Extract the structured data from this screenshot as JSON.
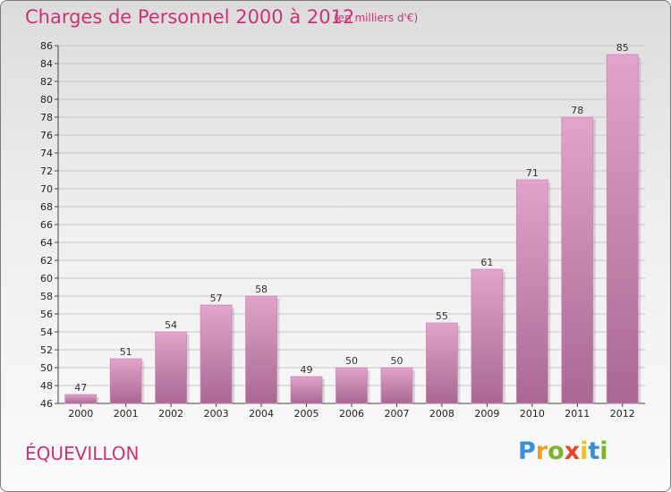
{
  "header": {
    "title": "Charges de Personnel 2000 à 2012",
    "subtitle": "(en milliers d'€)"
  },
  "footer": {
    "commune": "ÉQUEVILLON",
    "logo": [
      "P",
      "r",
      "o",
      "x",
      "i",
      "t",
      "i"
    ],
    "logo_colors": [
      "#3b8ed8",
      "#f0a020",
      "#7ab52c",
      "#e8462c",
      "#f0c020",
      "#3b8ed8",
      "#7ab52c"
    ]
  },
  "colors": {
    "bar_top": "#e2a4ca",
    "bar_bottom": "#a86892",
    "text_accent": "#cc3377"
  },
  "chart_data": {
    "type": "bar",
    "categories": [
      "2000",
      "2001",
      "2002",
      "2003",
      "2004",
      "2005",
      "2006",
      "2007",
      "2008",
      "2009",
      "2010",
      "2011",
      "2012"
    ],
    "values": [
      47,
      51,
      54,
      57,
      58,
      49,
      50,
      50,
      55,
      61,
      71,
      78,
      85
    ],
    "title": "Charges de Personnel 2000 à 2012",
    "subtitle": "(en milliers d'€)",
    "ylim": [
      46,
      86
    ],
    "yticks": [
      46,
      48,
      50,
      52,
      54,
      56,
      58,
      60,
      62,
      64,
      66,
      68,
      70,
      72,
      74,
      76,
      78,
      80,
      82,
      84,
      86
    ],
    "grid": true
  }
}
